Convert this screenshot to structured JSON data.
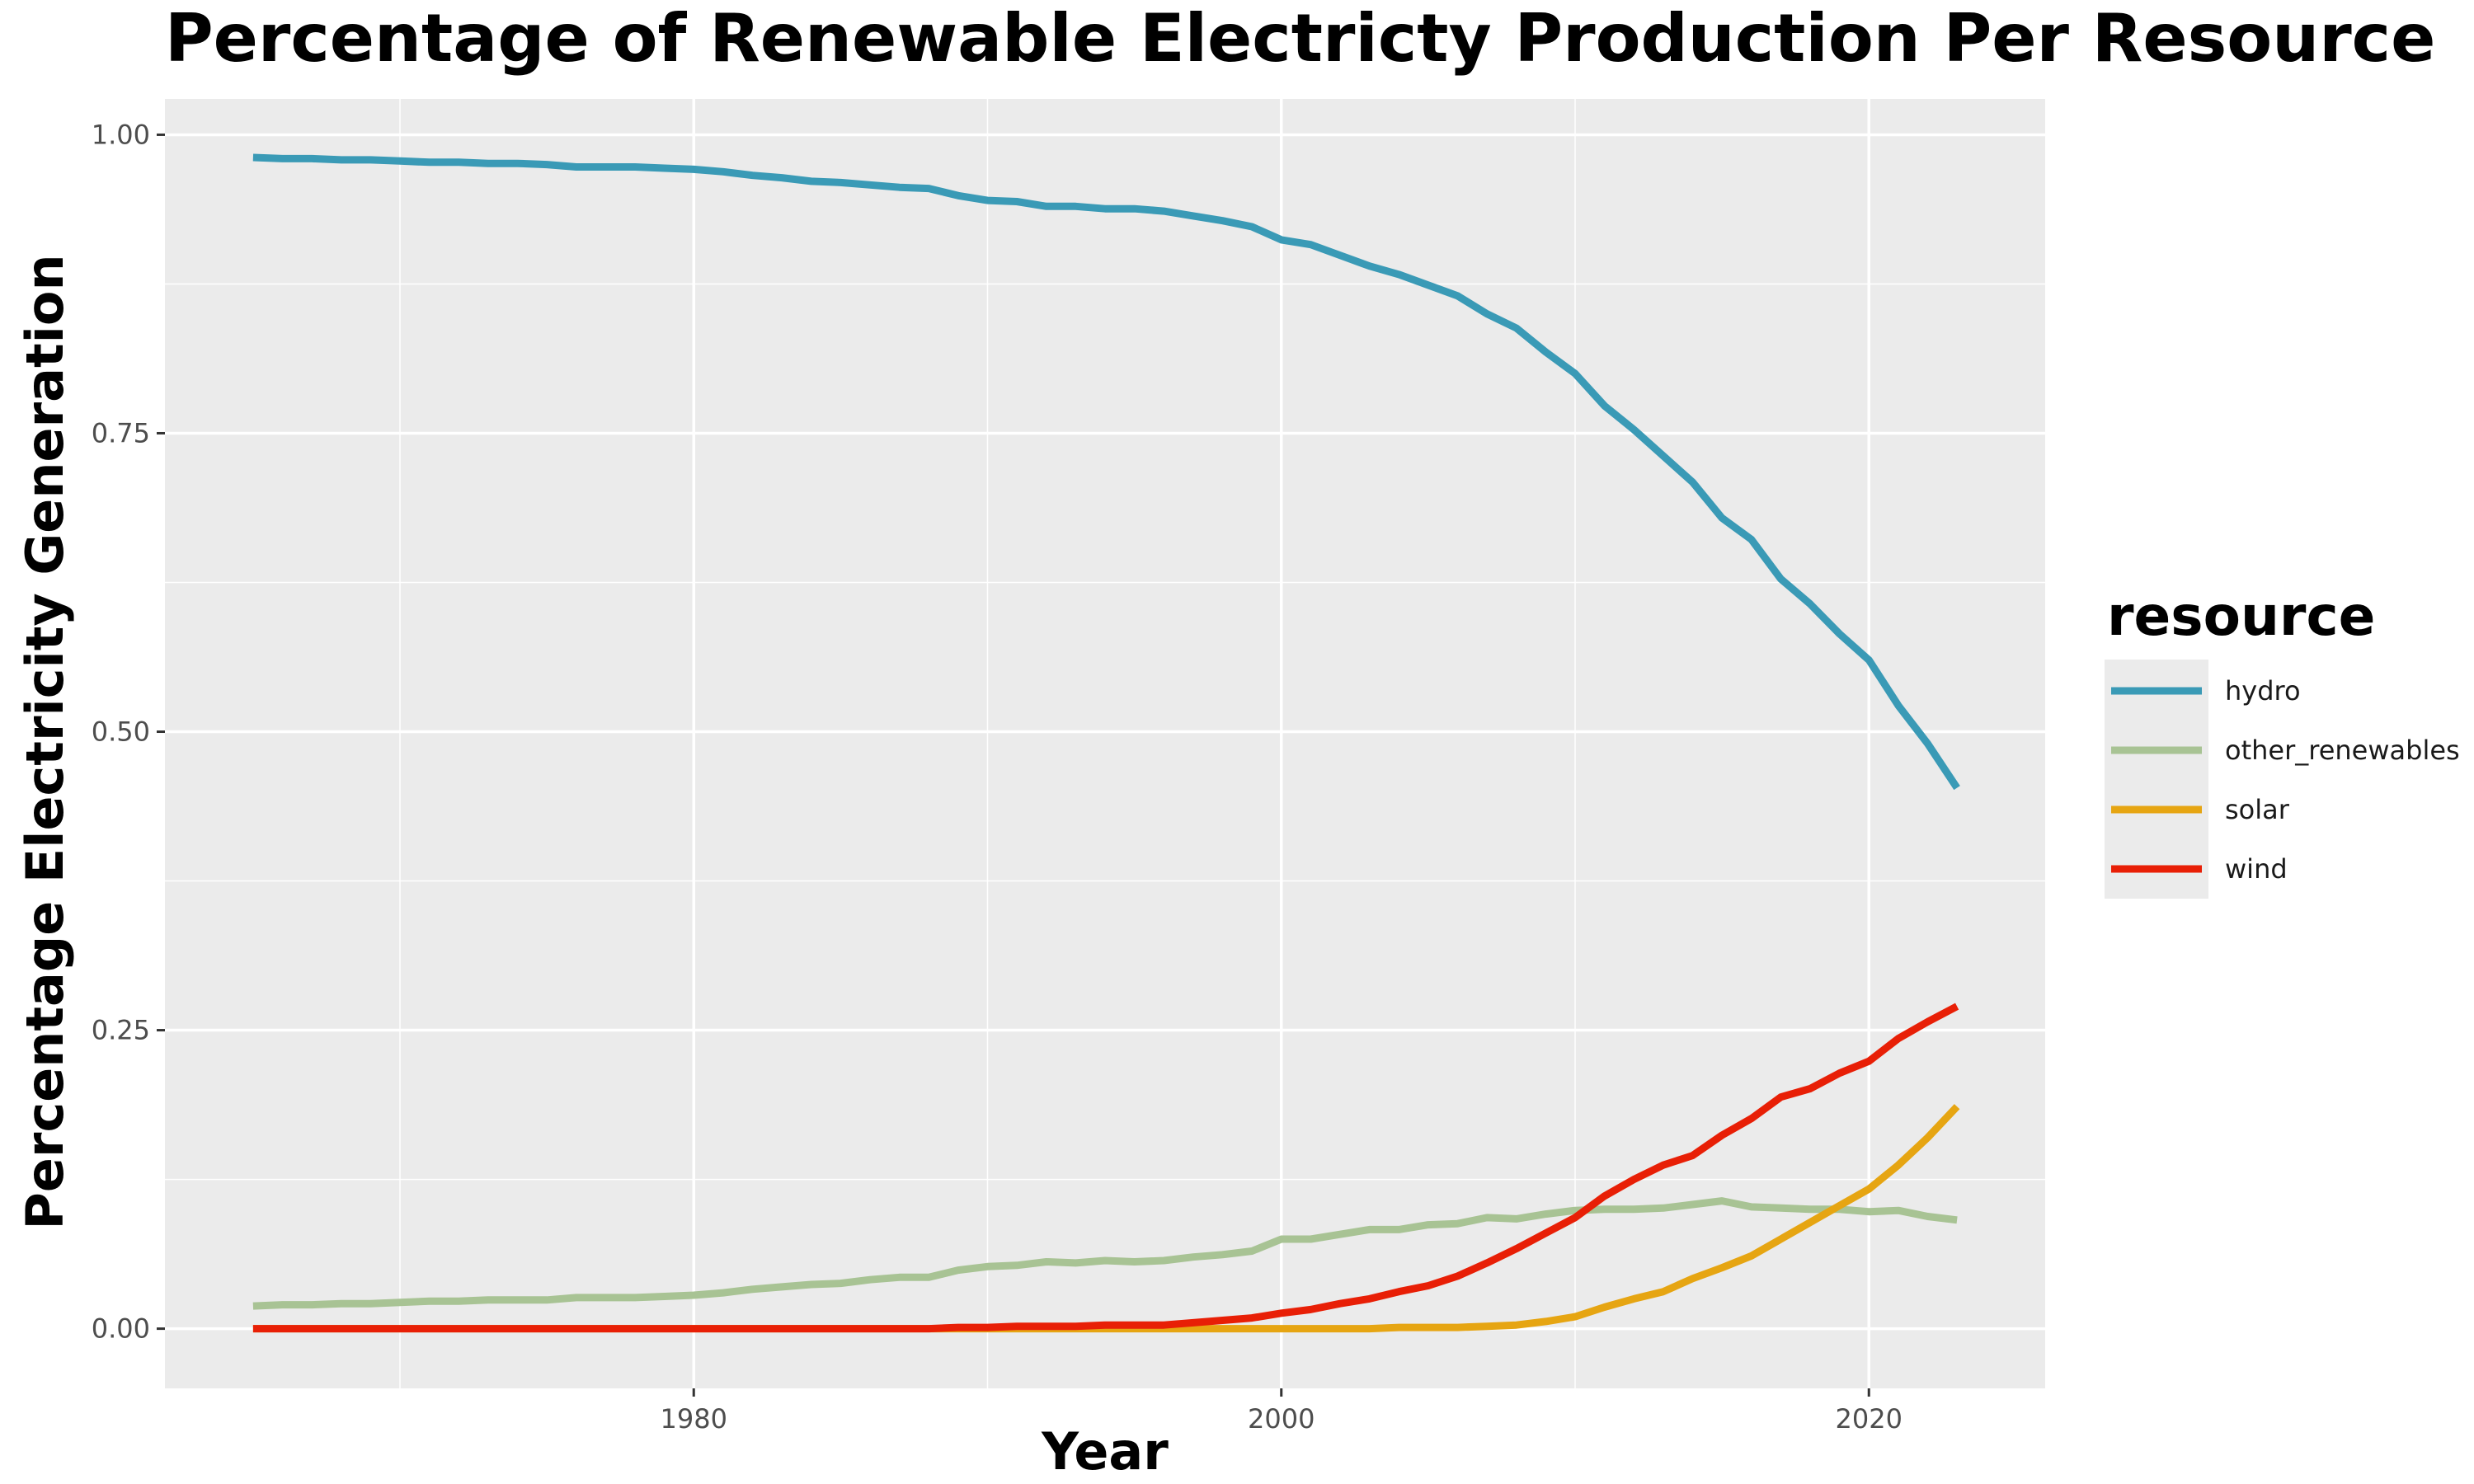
{
  "chart_data": {
    "type": "line",
    "title": "Percentage of Renewable Electricty Production Per Resource",
    "xlabel": "Year",
    "ylabel": "Percentage Electricity Generation",
    "xlim": [
      1962,
      2026
    ],
    "ylim": [
      -0.05,
      1.03
    ],
    "x_ticks": [
      1980,
      2000,
      2020
    ],
    "x_tick_labels": [
      "1980",
      "2000",
      "2020"
    ],
    "y_ticks": [
      0,
      0.25,
      0.5,
      0.75,
      1
    ],
    "y_tick_labels": [
      "0.00",
      "0.25",
      "0.50",
      "0.75",
      "1.00"
    ],
    "grid": true,
    "legend": {
      "title": "resource",
      "position": "right"
    },
    "x": [
      1965,
      1966,
      1967,
      1968,
      1969,
      1970,
      1971,
      1972,
      1973,
      1974,
      1975,
      1976,
      1977,
      1978,
      1979,
      1980,
      1981,
      1982,
      1983,
      1984,
      1985,
      1986,
      1987,
      1988,
      1989,
      1990,
      1991,
      1992,
      1993,
      1994,
      1995,
      1996,
      1997,
      1998,
      1999,
      2000,
      2001,
      2002,
      2003,
      2004,
      2005,
      2006,
      2007,
      2008,
      2009,
      2010,
      2011,
      2012,
      2013,
      2014,
      2015,
      2016,
      2017,
      2018,
      2019,
      2020,
      2021,
      2022,
      2023
    ],
    "series": [
      {
        "name": "hydro",
        "color": "#3a9ab6",
        "values": [
          0.981,
          0.98,
          0.98,
          0.979,
          0.979,
          0.978,
          0.977,
          0.977,
          0.976,
          0.976,
          0.975,
          0.973,
          0.973,
          0.973,
          0.972,
          0.971,
          0.969,
          0.966,
          0.964,
          0.961,
          0.96,
          0.958,
          0.956,
          0.955,
          0.949,
          0.945,
          0.944,
          0.94,
          0.94,
          0.938,
          0.938,
          0.936,
          0.932,
          0.928,
          0.923,
          0.912,
          0.908,
          0.899,
          0.89,
          0.883,
          0.874,
          0.865,
          0.85,
          0.838,
          0.818,
          0.8,
          0.773,
          0.753,
          0.731,
          0.709,
          0.679,
          0.661,
          0.628,
          0.607,
          0.582,
          0.56,
          0.522,
          0.49,
          0.453
        ]
      },
      {
        "name": "other_renewables",
        "color": "#a8c394",
        "values": [
          0.019,
          0.02,
          0.02,
          0.021,
          0.021,
          0.022,
          0.023,
          0.023,
          0.024,
          0.024,
          0.024,
          0.026,
          0.026,
          0.026,
          0.027,
          0.028,
          0.03,
          0.033,
          0.035,
          0.037,
          0.038,
          0.041,
          0.043,
          0.043,
          0.049,
          0.052,
          0.053,
          0.056,
          0.055,
          0.057,
          0.056,
          0.057,
          0.06,
          0.062,
          0.065,
          0.075,
          0.075,
          0.079,
          0.083,
          0.083,
          0.087,
          0.088,
          0.093,
          0.092,
          0.096,
          0.099,
          0.1,
          0.1,
          0.101,
          0.104,
          0.107,
          0.102,
          0.101,
          0.1,
          0.1,
          0.098,
          0.099,
          0.094,
          0.091
        ]
      },
      {
        "name": "solar",
        "color": "#e6a512",
        "values": [
          0,
          0,
          0,
          0,
          0,
          0,
          0,
          0,
          0,
          0,
          0,
          0,
          0,
          0,
          0,
          0,
          0,
          0,
          0,
          0,
          0,
          0,
          0,
          0,
          0,
          0,
          0,
          0,
          0,
          0,
          0,
          0,
          0,
          0,
          0,
          0,
          0,
          0,
          0,
          0.001,
          0.001,
          0.001,
          0.002,
          0.003,
          0.006,
          0.01,
          0.018,
          0.025,
          0.031,
          0.042,
          0.051,
          0.061,
          0.075,
          0.089,
          0.103,
          0.117,
          0.137,
          0.16,
          0.186
        ]
      },
      {
        "name": "wind",
        "color": "#e81f06",
        "values": [
          0,
          0,
          0,
          0,
          0,
          0,
          0,
          0,
          0,
          0,
          0,
          0,
          0,
          0,
          0,
          0,
          0,
          0,
          0,
          0,
          0,
          0,
          0,
          0,
          0.001,
          0.001,
          0.002,
          0.002,
          0.002,
          0.003,
          0.003,
          0.003,
          0.005,
          0.007,
          0.009,
          0.013,
          0.016,
          0.021,
          0.025,
          0.031,
          0.036,
          0.044,
          0.055,
          0.067,
          0.08,
          0.093,
          0.111,
          0.125,
          0.137,
          0.145,
          0.162,
          0.176,
          0.194,
          0.201,
          0.214,
          0.224,
          0.243,
          0.257,
          0.27
        ]
      }
    ]
  }
}
